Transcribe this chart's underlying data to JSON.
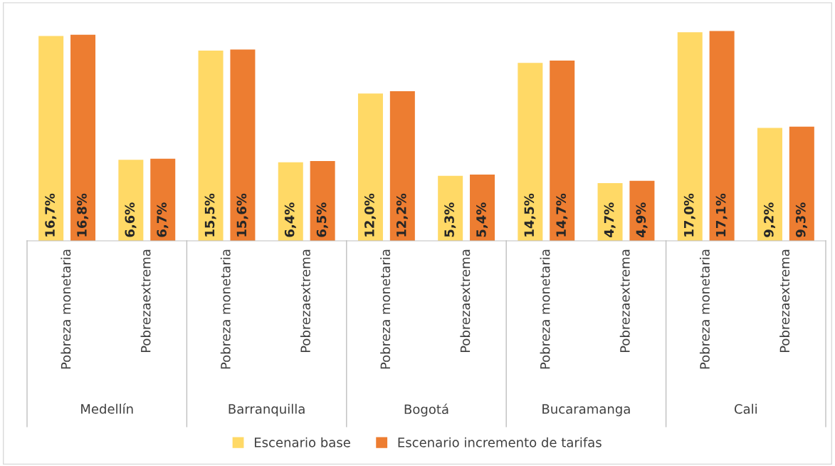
{
  "chart_data": {
    "type": "bar",
    "categories": [
      "Pobreza monetaria",
      "Pobrezaextrema",
      "Pobreza monetaria",
      "Pobrezaextrema",
      "Pobreza monetaria",
      "Pobrezaextrema",
      "Pobreza monetaria",
      "Pobrezaextrema",
      "Pobreza monetaria",
      "Pobrezaextrema"
    ],
    "annotations": [
      "Medellín",
      "Barranquilla",
      "Bogotá",
      "Bucaramanga",
      "Cali"
    ],
    "series": [
      {
        "name": "Escenario base",
        "color": "#ffd966",
        "values": [
          16.7,
          6.6,
          15.5,
          6.4,
          12.0,
          5.3,
          14.5,
          4.7,
          17.0,
          9.2
        ],
        "value_labels": [
          "16,7%",
          "6,6%",
          "15,5%",
          "6,4%",
          "12,0%",
          "5,3%",
          "14,5%",
          "4,7%",
          "17,0%",
          "9,2%"
        ]
      },
      {
        "name": "Escenario incremento de tarifas",
        "color": "#ed7d31",
        "values": [
          16.8,
          6.7,
          15.6,
          6.5,
          12.2,
          5.4,
          14.7,
          4.9,
          17.1,
          9.3
        ],
        "value_labels": [
          "16,8%",
          "6,7%",
          "15,6%",
          "6,5%",
          "12,2%",
          "5,4%",
          "14,7%",
          "4,9%",
          "17,1%",
          "9,3%"
        ]
      }
    ],
    "tick_labels": "x",
    "grid": false,
    "legend": "bottom"
  }
}
